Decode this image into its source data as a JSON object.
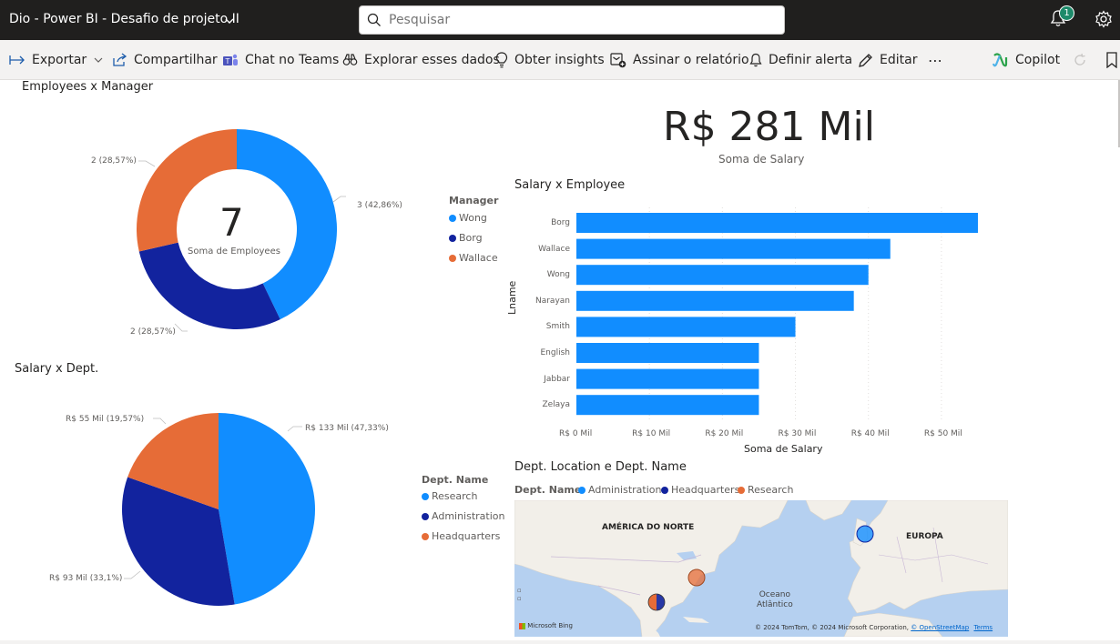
{
  "app": {
    "title": "Dio - Power BI - Desafio de projeto II",
    "notifications": "1"
  },
  "search": {
    "placeholder": "Pesquisar"
  },
  "toolbar": {
    "export": "Exportar",
    "share": "Compartilhar",
    "teams": "Chat no Teams",
    "explore": "Explorar esses dados",
    "insights": "Obter insights",
    "subscribe": "Assinar o relatório",
    "alert": "Definir alerta",
    "edit": "Editar",
    "more": "⋯",
    "copilot": "Copilot"
  },
  "colors": {
    "blue": "#118DFF",
    "navy": "#12239E",
    "orange": "#E66C37"
  },
  "kpi": {
    "value": "R$ 281 Mil",
    "label": "Soma de Salary"
  },
  "donut": {
    "title": "Employees x Manager",
    "center_value": "7",
    "center_label": "Soma de Employees",
    "legend_title": "Manager",
    "legend": [
      "Wong",
      "Borg",
      "Wallace"
    ],
    "slice_labels": [
      "3 (42,86%)",
      "2 (28,57%)",
      "2 (28,57%)"
    ]
  },
  "pie": {
    "title": "Salary x Dept.",
    "legend_title": "Dept. Name",
    "legend": [
      "Research",
      "Administration",
      "Headquarters"
    ],
    "slice_labels": [
      "R$ 133 Mil (47,33%)",
      "R$ 93 Mil (33,1%)",
      "R$ 55 Mil (19,57%)"
    ]
  },
  "bar": {
    "title": "Salary x Employee",
    "ylabel": "Lname",
    "xlabel": "Soma de Salary",
    "ticks": [
      "R$ 0 Mil",
      "R$ 10 Mil",
      "R$ 20 Mil",
      "R$ 30 Mil",
      "R$ 40 Mil",
      "R$ 50 Mil"
    ]
  },
  "map": {
    "title": "Dept. Location e Dept. Name",
    "legend_title": "Dept. Name",
    "legend": [
      "Administration",
      "Headquarters",
      "Research"
    ],
    "label_na": "AMÉRICA DO NORTE",
    "label_eu": "EUROPA",
    "label_ocean": "Oceano\nAtlântico",
    "brand": "Microsoft Bing",
    "attribution": "© 2024 TomTom, © 2024 Microsoft Corporation,",
    "osm": "© OpenStreetMap",
    "terms": "Terms"
  },
  "chart_data": [
    {
      "type": "pie",
      "title": "Employees x Manager",
      "categories": [
        "Wong",
        "Borg",
        "Wallace"
      ],
      "values": [
        3,
        2,
        2
      ],
      "total": 7
    },
    {
      "type": "pie",
      "title": "Salary x Dept.",
      "categories": [
        "Research",
        "Administration",
        "Headquarters"
      ],
      "values": [
        133,
        93,
        55
      ],
      "unit": "R$ Mil"
    },
    {
      "type": "bar",
      "title": "Salary x Employee",
      "orientation": "horizontal",
      "categories": [
        "Borg",
        "Wallace",
        "Wong",
        "Narayan",
        "Smith",
        "English",
        "Jabbar",
        "Zelaya"
      ],
      "values": [
        55,
        43,
        40,
        38,
        30,
        25,
        25,
        25
      ],
      "xlim": [
        0,
        57
      ],
      "xlabel": "Soma de Salary",
      "ylabel": "Lname"
    }
  ]
}
